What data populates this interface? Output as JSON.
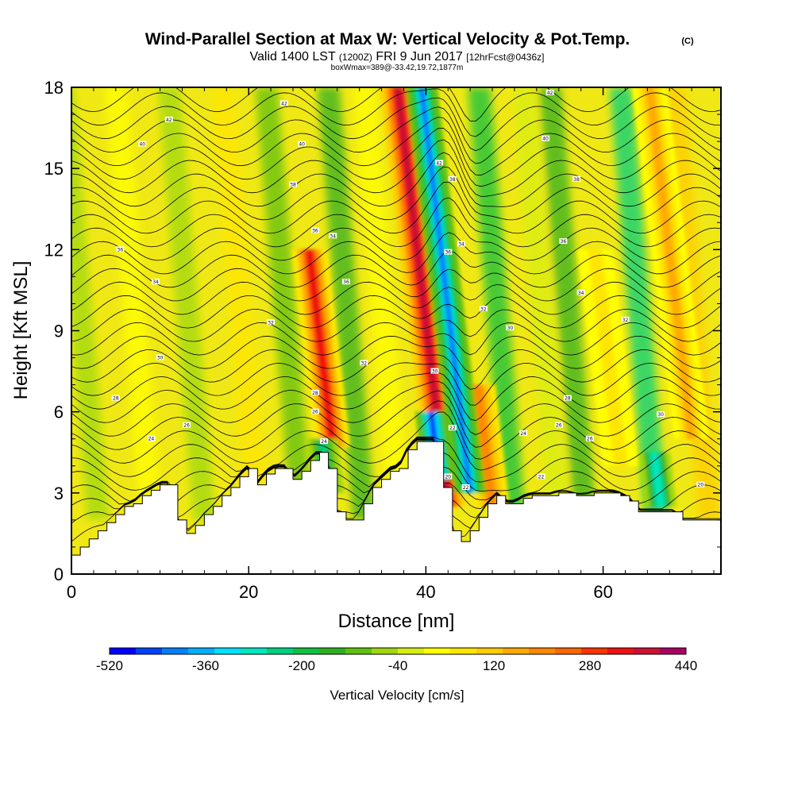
{
  "chart_data": {
    "type": "heatmap",
    "title": "Wind-Parallel Section at Max W: Vertical Velocity & Pot.Temp.",
    "title_mark": "(C)",
    "subtitle_valid": "Valid 1400 LST",
    "subtitle_utc": "(1200Z)",
    "subtitle_date": "FRI 9 Jun 2017",
    "subtitle_fcst": "[12hrFcst@0436z]",
    "subtitle_box": "boxWmax=389@-33.42,19.72,1877m",
    "xlabel": "Distance [nm]",
    "ylabel": "Height [Kft MSL]",
    "xlim": [
      0,
      73.3
    ],
    "ylim": [
      0,
      18
    ],
    "x_ticks": [
      "0",
      "20",
      "40",
      "60"
    ],
    "y_ticks": [
      "0",
      "3",
      "6",
      "9",
      "12",
      "15",
      "18"
    ],
    "colorbar_label": "Vertical Velocity [cm/s]",
    "colorbar_range": [
      -520,
      440
    ],
    "colorbar_ticks": [
      "-520",
      "-360",
      "-200",
      "-40",
      "120",
      "280",
      "440"
    ],
    "colorbar_colors": [
      "#0000ff",
      "#0040ff",
      "#0080ff",
      "#00b0ff",
      "#00e0ff",
      "#00e8c0",
      "#00d080",
      "#10c040",
      "#30b020",
      "#60c010",
      "#a0d810",
      "#d8ee10",
      "#ffff00",
      "#ffe600",
      "#ffcc00",
      "#ffaa00",
      "#ff8800",
      "#ff6600",
      "#ff3300",
      "#ee1111",
      "#cc1133",
      "#aa0066"
    ],
    "updraft_bands": [
      {
        "x": 29.5,
        "y_bottom": 4.7,
        "y_top": 12.0,
        "peak": 320
      },
      {
        "x": 42.5,
        "y_bottom": 2.5,
        "y_top": 18.0,
        "peak": 389
      },
      {
        "x": 47.5,
        "y_bottom": 2.5,
        "y_top": 7.0,
        "peak": 200
      },
      {
        "x": 62.0,
        "y_bottom": 4.0,
        "y_top": 12.0,
        "peak": 80
      },
      {
        "x": 70.0,
        "y_bottom": 5.0,
        "y_top": 18.0,
        "peak": 150
      }
    ],
    "downdraft_bands": [
      {
        "x": 45.0,
        "y_bottom": 3.0,
        "y_top": 18.0,
        "peak": -400
      },
      {
        "x": 41.5,
        "y_bottom": 3.5,
        "y_top": 6.0,
        "peak": -450
      },
      {
        "x": 29.0,
        "y_bottom": 3.0,
        "y_top": 5.0,
        "peak": -250
      },
      {
        "x": 66.5,
        "y_bottom": 2.5,
        "y_top": 4.5,
        "peak": -300
      }
    ],
    "terrain": [
      [
        0,
        0.7
      ],
      [
        1,
        1.0
      ],
      [
        2,
        1.3
      ],
      [
        3,
        1.6
      ],
      [
        4,
        1.9
      ],
      [
        5,
        2.2
      ],
      [
        6,
        2.5
      ],
      [
        7,
        2.6
      ],
      [
        8,
        2.9
      ],
      [
        9,
        3.1
      ],
      [
        10,
        3.3
      ],
      [
        11,
        3.3
      ],
      [
        12,
        2.0
      ],
      [
        13,
        1.5
      ],
      [
        14,
        1.8
      ],
      [
        15,
        2.2
      ],
      [
        16,
        2.5
      ],
      [
        17,
        2.9
      ],
      [
        18,
        3.2
      ],
      [
        19,
        3.6
      ],
      [
        20,
        3.9
      ],
      [
        21,
        3.3
      ],
      [
        22,
        3.7
      ],
      [
        23,
        3.9
      ],
      [
        24,
        3.9
      ],
      [
        25,
        3.5
      ],
      [
        26,
        3.8
      ],
      [
        27,
        4.2
      ],
      [
        28,
        4.5
      ],
      [
        29,
        3.9
      ],
      [
        30,
        2.3
      ],
      [
        31,
        2.0
      ],
      [
        32,
        2.0
      ],
      [
        33,
        2.6
      ],
      [
        34,
        3.2
      ],
      [
        35,
        3.5
      ],
      [
        36,
        3.8
      ],
      [
        37,
        3.9
      ],
      [
        38,
        4.6
      ],
      [
        39,
        4.9
      ],
      [
        40,
        4.9
      ],
      [
        41,
        4.9
      ],
      [
        42,
        3.2
      ],
      [
        43,
        1.6
      ],
      [
        44,
        1.2
      ],
      [
        45,
        1.6
      ],
      [
        46,
        2.1
      ],
      [
        47,
        2.6
      ],
      [
        48,
        2.9
      ],
      [
        49,
        2.6
      ],
      [
        50,
        2.6
      ],
      [
        51,
        2.8
      ],
      [
        52,
        2.9
      ],
      [
        53,
        2.9
      ],
      [
        54,
        2.9
      ],
      [
        55,
        3.0
      ],
      [
        56,
        3.0
      ],
      [
        57,
        2.9
      ],
      [
        58,
        2.9
      ],
      [
        59,
        3.0
      ],
      [
        60,
        3.0
      ],
      [
        61,
        3.0
      ],
      [
        62,
        2.9
      ],
      [
        63,
        2.7
      ],
      [
        64,
        2.3
      ],
      [
        65,
        2.3
      ],
      [
        66,
        2.3
      ],
      [
        67,
        2.3
      ],
      [
        68,
        2.3
      ],
      [
        69,
        2.0
      ],
      [
        70,
        2.0
      ],
      [
        71,
        2.0
      ],
      [
        72,
        2.0
      ],
      [
        73.3,
        2.0
      ]
    ],
    "theta_contour_labels": [
      {
        "text": "42",
        "x": 11,
        "y": 16.8
      },
      {
        "text": "40",
        "x": 8,
        "y": 15.9
      },
      {
        "text": "42",
        "x": 24,
        "y": 17.4
      },
      {
        "text": "40",
        "x": 26,
        "y": 15.9
      },
      {
        "text": "38",
        "x": 25,
        "y": 14.4
      },
      {
        "text": "36",
        "x": 5.5,
        "y": 12.0
      },
      {
        "text": "36",
        "x": 27.5,
        "y": 12.7
      },
      {
        "text": "34",
        "x": 9.5,
        "y": 10.8
      },
      {
        "text": "34",
        "x": 29.5,
        "y": 12.5
      },
      {
        "text": "32",
        "x": 22.5,
        "y": 9.3
      },
      {
        "text": "30",
        "x": 10,
        "y": 8.0
      },
      {
        "text": "28",
        "x": 5,
        "y": 6.5
      },
      {
        "text": "24",
        "x": 9,
        "y": 5.0
      },
      {
        "text": "26",
        "x": 13,
        "y": 5.5
      },
      {
        "text": "32",
        "x": 33,
        "y": 7.8
      },
      {
        "text": "36",
        "x": 31,
        "y": 10.8
      },
      {
        "text": "42",
        "x": 41.5,
        "y": 15.2
      },
      {
        "text": "38",
        "x": 43,
        "y": 14.6
      },
      {
        "text": "36",
        "x": 42.5,
        "y": 11.9
      },
      {
        "text": "34",
        "x": 44,
        "y": 12.2
      },
      {
        "text": "32",
        "x": 46.5,
        "y": 9.8
      },
      {
        "text": "30",
        "x": 41,
        "y": 7.5
      },
      {
        "text": "28",
        "x": 27.5,
        "y": 6.7
      },
      {
        "text": "26",
        "x": 27.5,
        "y": 6.0
      },
      {
        "text": "24",
        "x": 28.5,
        "y": 4.9
      },
      {
        "text": "22",
        "x": 43,
        "y": 5.4
      },
      {
        "text": "20",
        "x": 42.5,
        "y": 3.6
      },
      {
        "text": "22",
        "x": 44.5,
        "y": 3.2
      },
      {
        "text": "42",
        "x": 54,
        "y": 17.8
      },
      {
        "text": "40",
        "x": 53.5,
        "y": 16.1
      },
      {
        "text": "38",
        "x": 57,
        "y": 14.6
      },
      {
        "text": "36",
        "x": 55.5,
        "y": 12.3
      },
      {
        "text": "34",
        "x": 57.5,
        "y": 10.4
      },
      {
        "text": "32",
        "x": 62.5,
        "y": 9.4
      },
      {
        "text": "30",
        "x": 49.5,
        "y": 9.1
      },
      {
        "text": "28",
        "x": 56,
        "y": 6.5
      },
      {
        "text": "26",
        "x": 55,
        "y": 5.5
      },
      {
        "text": "24",
        "x": 51,
        "y": 5.2
      },
      {
        "text": "22",
        "x": 53,
        "y": 3.6
      },
      {
        "text": "30",
        "x": 66.5,
        "y": 5.9
      },
      {
        "text": "26",
        "x": 58.5,
        "y": 5.0
      },
      {
        "text": "20",
        "x": 71,
        "y": 3.3
      }
    ]
  }
}
